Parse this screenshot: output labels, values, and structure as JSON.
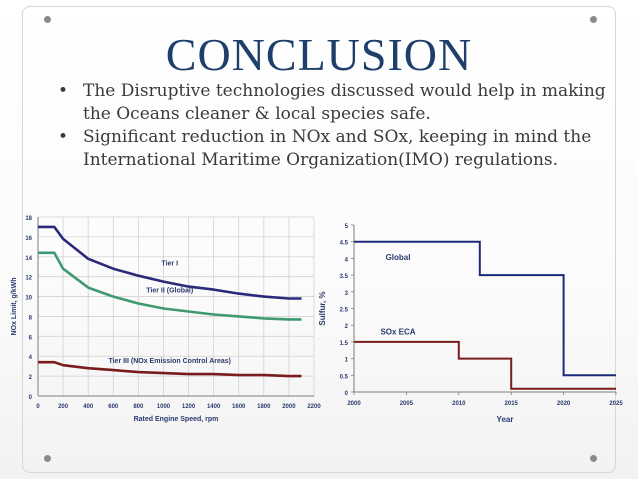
{
  "slide": {
    "title": "CONCLUSION",
    "bullets": [
      "The Disruptive technologies discussed would help in making the Oceans cleaner & local species safe.",
      "Significant reduction in NOx and SOx, keeping in mind the International Maritime Organization(IMO) regulations."
    ]
  },
  "colors": {
    "title": "#1f3f6b",
    "tier1": "#2b2a7a",
    "tier2": "#3f9a72",
    "tier3": "#7a1c1c",
    "global": "#1c2a7a",
    "soxeca": "#7a1c1c",
    "axisText": "#2b3a6e"
  },
  "chart_data": [
    {
      "type": "line",
      "title": "",
      "xlabel": "Rated Engine Speed, rpm",
      "ylabel": "NOx Limit, g/kWh",
      "xlim": [
        0,
        2200
      ],
      "ylim": [
        0,
        18
      ],
      "xticks": [
        0,
        200,
        400,
        600,
        800,
        1000,
        1200,
        1400,
        1600,
        1800,
        2000,
        2200
      ],
      "yticks": [
        0,
        2,
        4,
        6,
        8,
        10,
        12,
        14,
        16,
        18
      ],
      "series": [
        {
          "name": "Tier I",
          "color": "#2b2a7a",
          "x": [
            0,
            130,
            200,
            400,
            600,
            800,
            1000,
            1200,
            1400,
            1600,
            1800,
            2000,
            2100
          ],
          "y": [
            17.0,
            17.0,
            15.8,
            13.8,
            12.8,
            12.1,
            11.5,
            11.0,
            10.7,
            10.3,
            10.0,
            9.8,
            9.8
          ]
        },
        {
          "name": "Tier II (Global)",
          "color": "#3f9a72",
          "x": [
            0,
            130,
            200,
            400,
            600,
            800,
            1000,
            1200,
            1400,
            1600,
            1800,
            2000,
            2100
          ],
          "y": [
            14.4,
            14.4,
            12.8,
            10.9,
            10.0,
            9.3,
            8.8,
            8.5,
            8.2,
            8.0,
            7.8,
            7.7,
            7.7
          ]
        },
        {
          "name": "Tier III (NOx Emission Control Areas)",
          "color": "#7a1c1c",
          "x": [
            0,
            130,
            200,
            400,
            600,
            800,
            1000,
            1200,
            1400,
            1600,
            1800,
            2000,
            2100
          ],
          "y": [
            3.4,
            3.4,
            3.1,
            2.8,
            2.6,
            2.4,
            2.3,
            2.2,
            2.2,
            2.1,
            2.1,
            2.0,
            2.0
          ]
        }
      ]
    },
    {
      "type": "line",
      "title": "",
      "xlabel": "Year",
      "ylabel": "Sulfur, %",
      "xlim": [
        2000,
        2025
      ],
      "ylim": [
        0,
        5
      ],
      "xticks": [
        2000,
        2005,
        2010,
        2015,
        2020,
        2025
      ],
      "yticks": [
        0,
        0.5,
        1,
        1.5,
        2,
        2.5,
        3,
        3.5,
        4,
        4.5,
        5
      ],
      "series": [
        {
          "name": "Global",
          "color": "#1c2a7a",
          "x": [
            2000,
            2012,
            2012,
            2020,
            2020,
            2025
          ],
          "y": [
            4.5,
            4.5,
            3.5,
            3.5,
            0.5,
            0.5
          ]
        },
        {
          "name": "SOx ECA",
          "color": "#7a1c1c",
          "x": [
            2000,
            2010,
            2010,
            2015,
            2015,
            2025
          ],
          "y": [
            1.5,
            1.5,
            1.0,
            1.0,
            0.1,
            0.1
          ]
        }
      ]
    }
  ]
}
